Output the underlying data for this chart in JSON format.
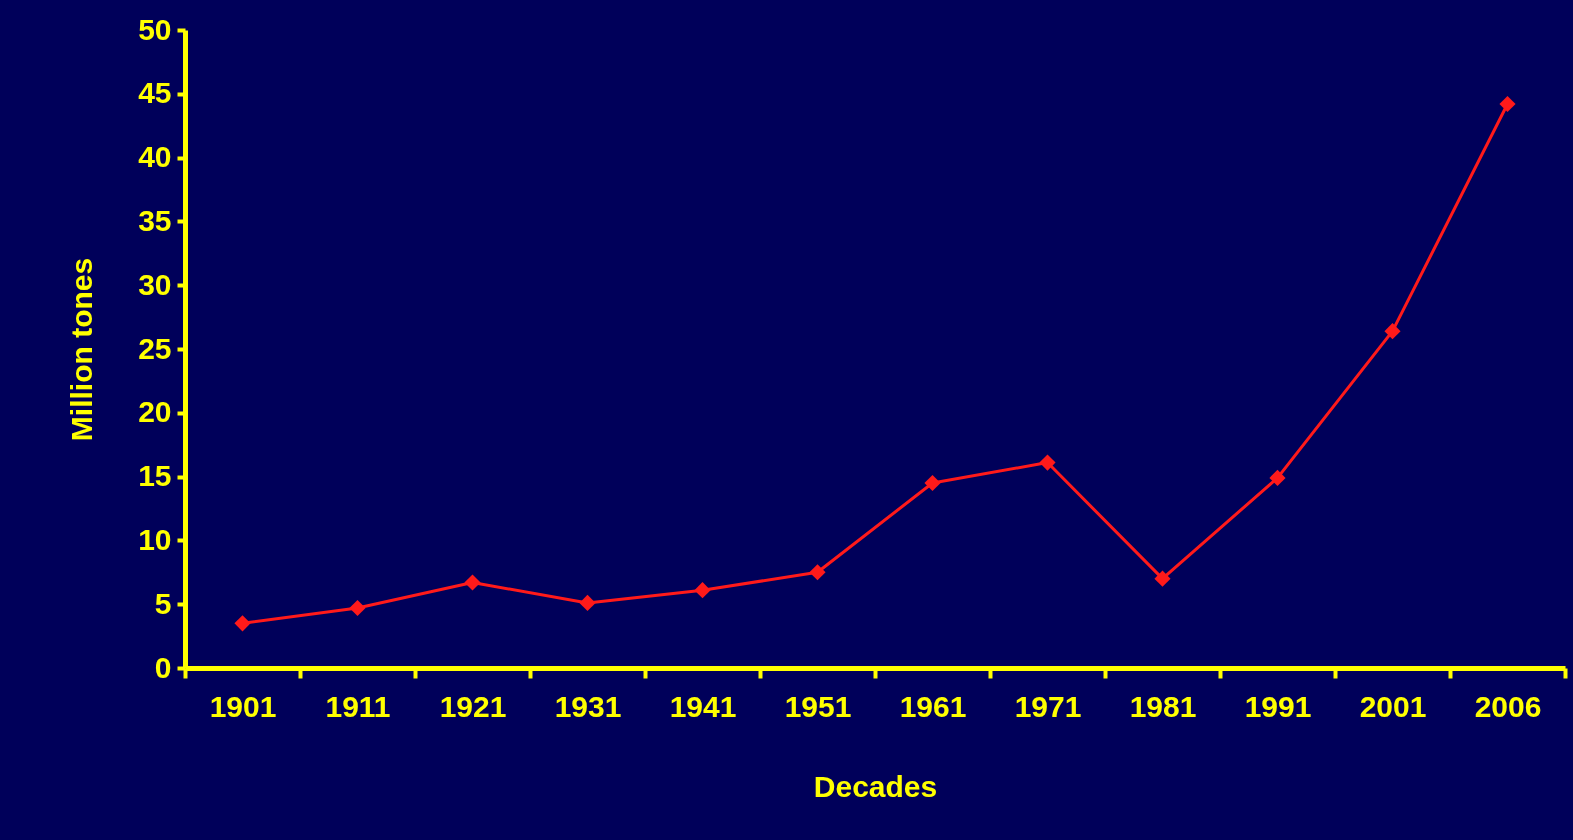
{
  "chart_data": {
    "type": "line",
    "xlabel": "Decades",
    "ylabel": "Million tones",
    "categories": [
      "1901",
      "1911",
      "1921",
      "1931",
      "1941",
      "1951",
      "1961",
      "1971",
      "1981",
      "1991",
      "2001",
      "2006"
    ],
    "series": [
      {
        "color": "#ff1a1a",
        "values": [
          3.5,
          4.7,
          6.7,
          5.1,
          6.1,
          7.5,
          14.5,
          16.1,
          7.0,
          14.9,
          26.4,
          44.2
        ]
      }
    ],
    "ylim": [
      0,
      50
    ],
    "yticks": [
      0,
      5,
      10,
      15,
      20,
      25,
      30,
      35,
      40,
      45,
      50
    ],
    "grid": false,
    "marker": "diamond",
    "line_style": "solid"
  }
}
